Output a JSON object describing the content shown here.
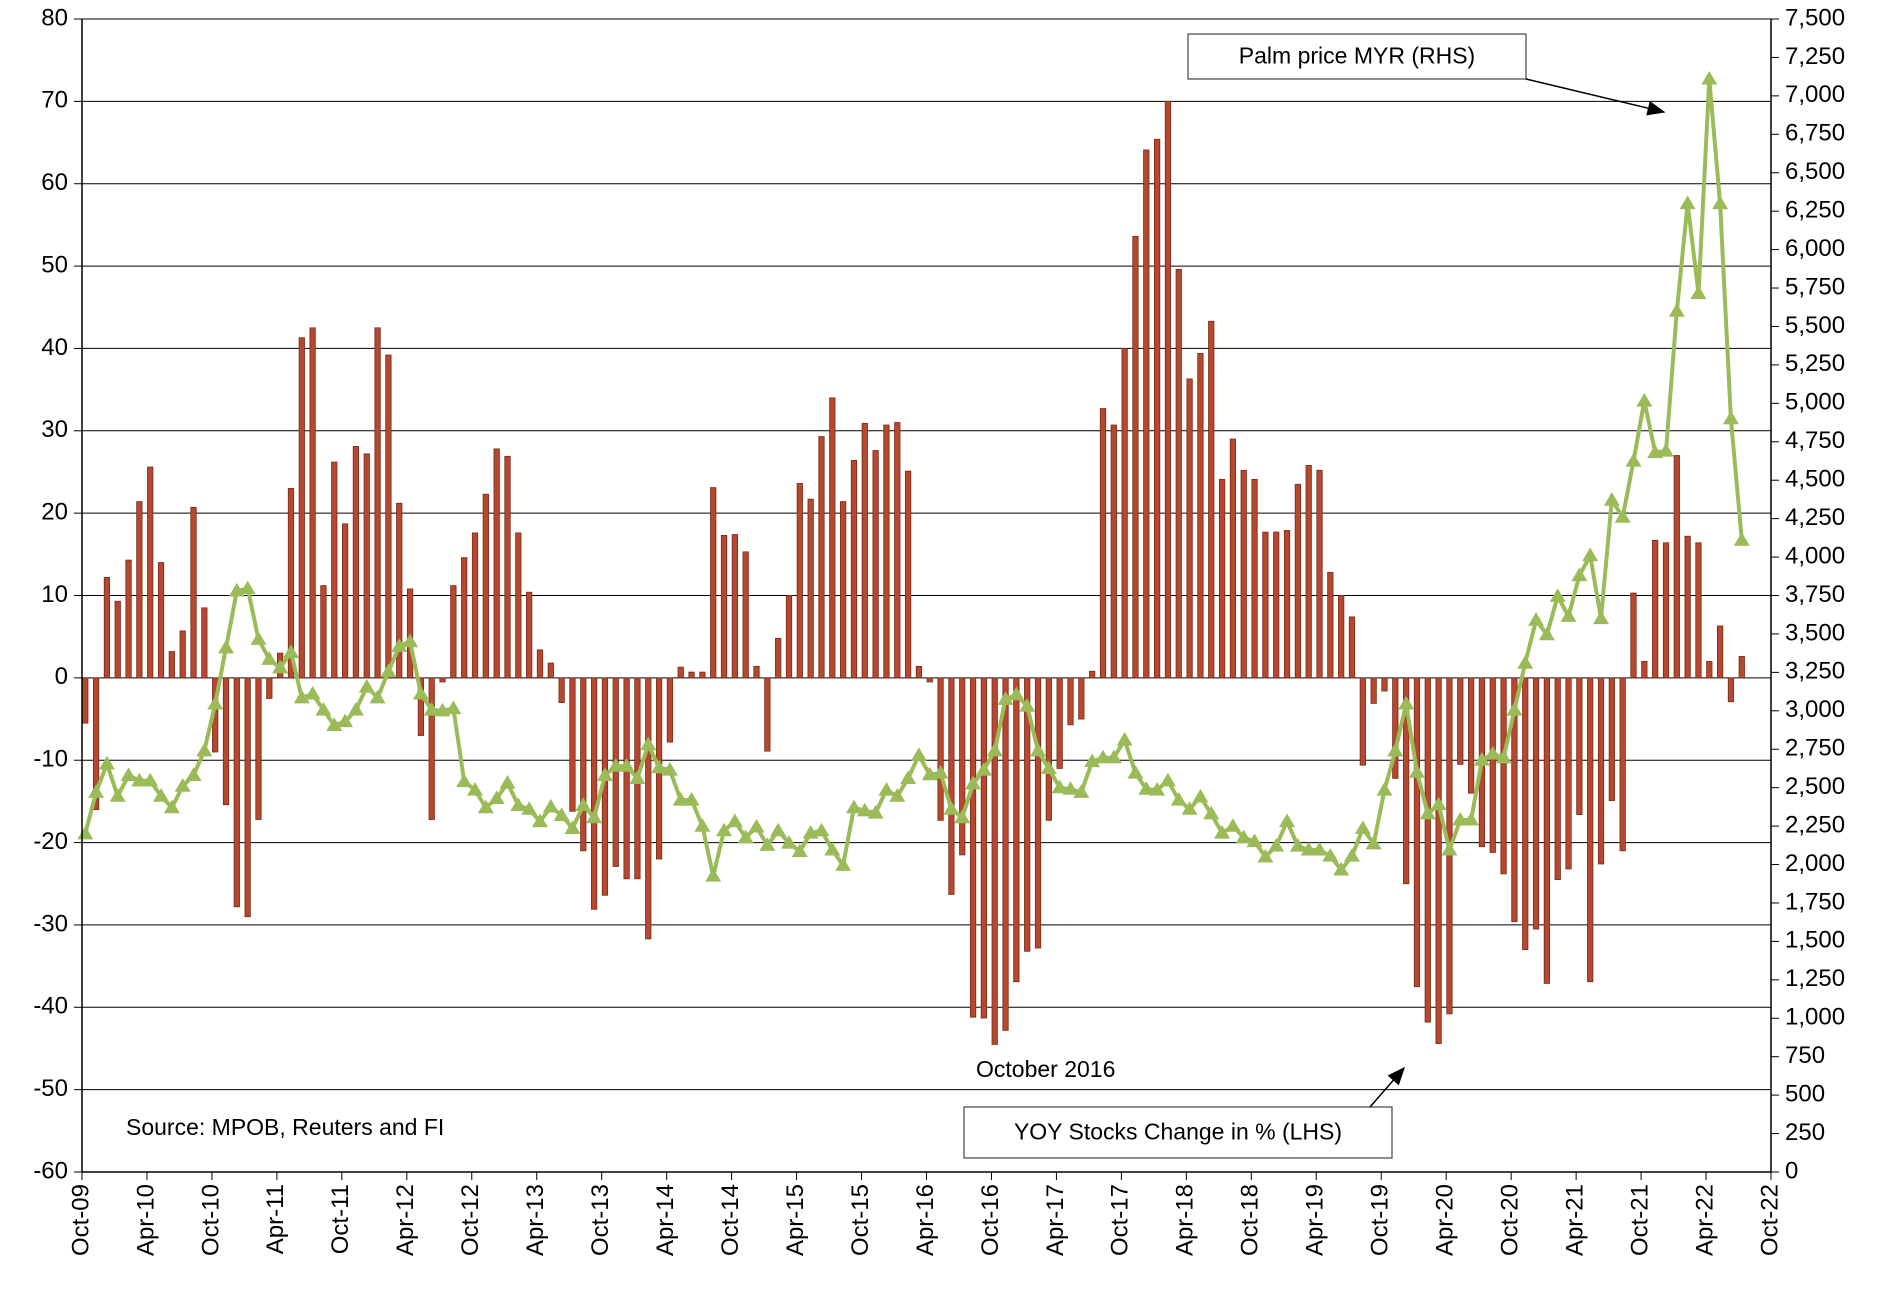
{
  "chart_data": {
    "type": "combo",
    "categories": [
      "Oct-09",
      null,
      null,
      null,
      null,
      null,
      "Apr-10",
      null,
      null,
      null,
      null,
      null,
      "Oct-10",
      null,
      null,
      null,
      null,
      null,
      "Apr-11",
      null,
      null,
      null,
      null,
      null,
      "Oct-11",
      null,
      null,
      null,
      null,
      null,
      "Apr-12",
      null,
      null,
      null,
      null,
      null,
      "Oct-12",
      null,
      null,
      null,
      null,
      null,
      "Apr-13",
      null,
      null,
      null,
      null,
      null,
      "Oct-13",
      null,
      null,
      null,
      null,
      null,
      "Apr-14",
      null,
      null,
      null,
      null,
      null,
      "Oct-14",
      null,
      null,
      null,
      null,
      null,
      "Apr-15",
      null,
      null,
      null,
      null,
      null,
      "Oct-15",
      null,
      null,
      null,
      null,
      null,
      "Apr-16",
      null,
      null,
      null,
      null,
      null,
      "Oct-16",
      null,
      null,
      null,
      null,
      null,
      "Apr-17",
      null,
      null,
      null,
      null,
      null,
      "Oct-17",
      null,
      null,
      null,
      null,
      null,
      "Apr-18",
      null,
      null,
      null,
      null,
      null,
      "Oct-18",
      null,
      null,
      null,
      null,
      null,
      "Apr-19",
      null,
      null,
      null,
      null,
      null,
      "Oct-19",
      null,
      null,
      null,
      null,
      null,
      "Apr-20",
      null,
      null,
      null,
      null,
      null,
      "Oct-20",
      null,
      null,
      null,
      null,
      null,
      "Apr-21",
      null,
      null,
      null,
      null,
      null,
      "Oct-21",
      null,
      null,
      null,
      null,
      null,
      "Apr-22",
      null,
      null,
      null,
      null,
      null,
      "Oct-22"
    ],
    "series": [
      {
        "name": "YOY Stocks Change in % (LHS)",
        "type": "bar",
        "color": "#b5482e",
        "axis": "y",
        "values": [
          -5.5,
          -16,
          12.2,
          9.3,
          14.3,
          21.4,
          25.6,
          14,
          3.2,
          5.7,
          20.7,
          8.5,
          -9,
          -15.4,
          -27.8,
          -29,
          -17.2,
          -2.5,
          3,
          23,
          41.3,
          42.5,
          11.2,
          26.2,
          18.7,
          28.1,
          27.2,
          42.5,
          39.2,
          21.2,
          10.8,
          -7,
          -17.2,
          -0.5,
          11.2,
          14.6,
          17.6,
          22.3,
          27.8,
          26.9,
          17.6,
          10.4,
          3.4,
          1.8,
          -3,
          -16.2,
          -21,
          -28.1,
          -26.4,
          -22.9,
          -24.4,
          -24.4,
          -31.7,
          -22,
          -7.8,
          1.3,
          0.7,
          0.7,
          23.1,
          17.3,
          17.4,
          15.3,
          1.4,
          -8.9,
          4.8,
          10,
          23.6,
          21.7,
          29.3,
          34,
          21.4,
          26.4,
          30.9,
          27.6,
          30.7,
          31,
          25.1,
          1.4,
          -0.5,
          -17.3,
          -26.3,
          -21.5,
          -41.2,
          -41.3,
          -44.5,
          -42.8,
          -36.9,
          -33.2,
          -32.8,
          -17.3,
          -11,
          -5.7,
          -5,
          0.8,
          32.7,
          30.7,
          40,
          53.6,
          64.1,
          65.4,
          70,
          49.6,
          36.3,
          39.4,
          43.3,
          24.1,
          29,
          25.2,
          24.1,
          17.7,
          17.7,
          17.9,
          23.5,
          25.8,
          25.2,
          12.8,
          10,
          7.4,
          -10.6,
          -3.1,
          -1.6,
          -12.2,
          -25,
          -37.5,
          -41.8,
          -44.4,
          -40.8,
          -10.5,
          -14,
          -20.5,
          -21.2,
          -23.8,
          -29.6,
          -33,
          -30.5,
          -37.1,
          -24.5,
          -23.2,
          -16.6,
          -36.9,
          -22.6,
          -14.9,
          -21,
          10.3,
          2,
          16.7,
          16.4,
          27,
          17.2,
          16.4,
          2,
          6.3,
          -2.9,
          2.6,
          null,
          null,
          null
        ]
      },
      {
        "name": "Palm price MYR (RHS)",
        "type": "line",
        "color": "#9bbb59",
        "axis": "y2",
        "values": [
          2200,
          2470,
          2655,
          2445,
          2580,
          2545,
          2545,
          2445,
          2370,
          2510,
          2580,
          2740,
          3045,
          3410,
          3780,
          3795,
          3465,
          3335,
          3280,
          3380,
          3085,
          3110,
          3005,
          2905,
          2930,
          3005,
          3155,
          3085,
          3255,
          3420,
          3450,
          3110,
          3005,
          3000,
          3015,
          2540,
          2485,
          2370,
          2430,
          2530,
          2385,
          2360,
          2280,
          2375,
          2320,
          2235,
          2385,
          2305,
          2580,
          2640,
          2640,
          2560,
          2780,
          2630,
          2615,
          2420,
          2420,
          2250,
          1925,
          2220,
          2280,
          2175,
          2245,
          2125,
          2220,
          2140,
          2085,
          2205,
          2220,
          2095,
          1995,
          2370,
          2350,
          2335,
          2485,
          2445,
          2560,
          2710,
          2585,
          2595,
          2360,
          2305,
          2525,
          2615,
          2740,
          3075,
          3105,
          3030,
          2740,
          2625,
          2500,
          2490,
          2470,
          2670,
          2695,
          2695,
          2810,
          2595,
          2490,
          2485,
          2545,
          2420,
          2360,
          2440,
          2330,
          2205,
          2250,
          2175,
          2150,
          2050,
          2120,
          2280,
          2120,
          2095,
          2095,
          2055,
          1965,
          2055,
          2235,
          2135,
          2485,
          2740,
          3045,
          2600,
          2330,
          2390,
          2095,
          2290,
          2290,
          2680,
          2720,
          2695,
          3005,
          3310,
          3590,
          3495,
          3745,
          3615,
          3880,
          4010,
          3600,
          4370,
          4260,
          4625,
          5015,
          4680,
          4690,
          5600,
          6300,
          5715,
          7110,
          6300,
          4900,
          4110,
          null,
          null,
          null
        ]
      }
    ],
    "ylim": [
      -60,
      80
    ],
    "yticks": [
      -60,
      -50,
      -40,
      -30,
      -20,
      -10,
      0,
      10,
      20,
      30,
      40,
      50,
      60,
      70,
      80
    ],
    "y2lim": [
      0,
      7500
    ],
    "y2ticks": [
      0,
      250,
      500,
      750,
      {
        "value": 1000,
        "label": "1,000"
      },
      {
        "value": 1250,
        "label": "1,250"
      },
      {
        "value": 1500,
        "label": "1,500"
      },
      {
        "value": 1750,
        "label": "1,750"
      },
      {
        "value": 2000,
        "label": "2,000"
      },
      {
        "value": 2250,
        "label": "2,250"
      },
      {
        "value": 2500,
        "label": "2,500"
      },
      {
        "value": 2750,
        "label": "2,750"
      },
      {
        "value": 3000,
        "label": "3,000"
      },
      {
        "value": 3250,
        "label": "3,250"
      },
      {
        "value": 3500,
        "label": "3,500"
      },
      {
        "value": 3750,
        "label": "3,750"
      },
      {
        "value": 4000,
        "label": "4,000"
      },
      {
        "value": 4250,
        "label": "4,250"
      },
      {
        "value": 4500,
        "label": "4,500"
      },
      {
        "value": 4750,
        "label": "4,750"
      },
      {
        "value": 5000,
        "label": "5,000"
      },
      {
        "value": 5250,
        "label": "5,250"
      },
      {
        "value": 5500,
        "label": "5,500"
      },
      {
        "value": 5750,
        "label": "5,750"
      },
      {
        "value": 6000,
        "label": "6,000"
      },
      {
        "value": 6250,
        "label": "6,250"
      },
      {
        "value": 6500,
        "label": "6,500"
      },
      {
        "value": 6750,
        "label": "6,750"
      },
      {
        "value": 7000,
        "label": "7,000"
      },
      {
        "value": 7250,
        "label": "7,250"
      },
      {
        "value": 7500,
        "label": "7,500"
      }
    ],
    "grid": true,
    "annotations": [
      "October 2016",
      "Source: MPOB, Reuters and FI"
    ]
  }
}
